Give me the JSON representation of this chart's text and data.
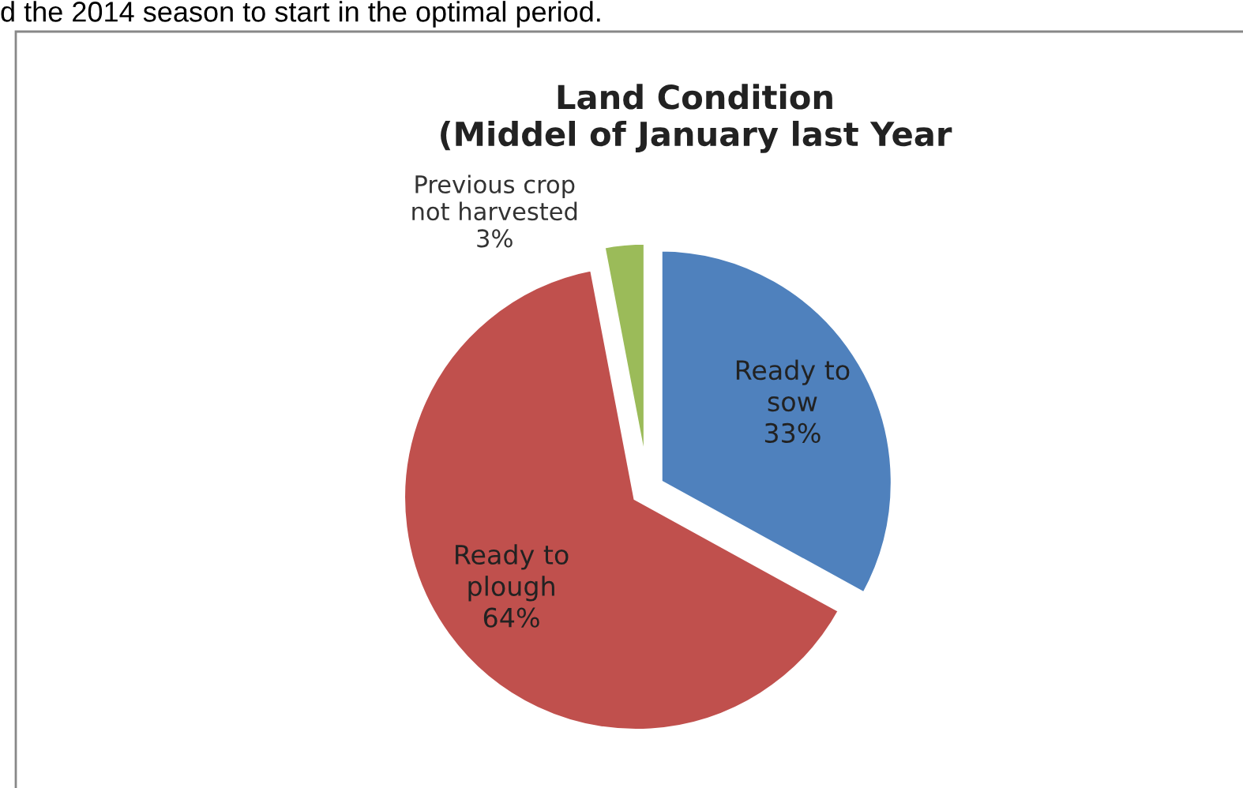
{
  "chart_data": {
    "type": "pie",
    "title": "Land Condition\n(Middel of January last Year",
    "categories": [
      "Ready to\nsow",
      "Ready to\nplough",
      "Previous crop\nnot harvested"
    ],
    "values": [
      33,
      64,
      3
    ],
    "colors": [
      "#4f81bd",
      "#c0504d",
      "#9bbb59"
    ],
    "value_labels": [
      "33%",
      "64%",
      "3%"
    ],
    "annotations": [
      "d the 2014 season to start in the optimal period."
    ],
    "legend": false
  }
}
